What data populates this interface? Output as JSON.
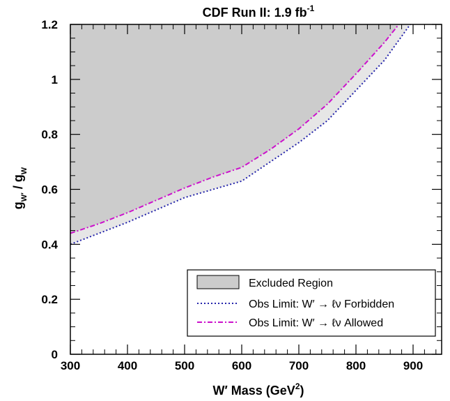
{
  "chart_data": {
    "type": "line",
    "title": "CDF Run II: 1.9 fb",
    "title_sup": "-1",
    "xlabel": "W′ Mass (GeV",
    "xlabel_sup": "2",
    "xlabel_tail": ")",
    "ylabel_main": "g",
    "ylabel_sub1": "W′",
    "ylabel_mid": " / g",
    "ylabel_sub2": "W",
    "xlim": [
      300,
      950
    ],
    "ylim": [
      0,
      1.2
    ],
    "x_ticks": [
      300,
      400,
      500,
      600,
      700,
      800,
      900
    ],
    "x_tick_labels": [
      "300",
      "400",
      "500",
      "600",
      "700",
      "800",
      "900"
    ],
    "y_ticks": [
      0,
      0.2,
      0.4,
      0.6,
      0.8,
      1,
      1.2
    ],
    "y_tick_labels": [
      "0",
      "0.2",
      "0.4",
      "0.6",
      "0.8",
      "1",
      "1.2"
    ],
    "grid": false,
    "legend_position": "bottom-right",
    "series": [
      {
        "name": "Obs Limit: W′ → ℓν Forbidden",
        "color": "#2222aa",
        "style": "dotted",
        "x": [
          300,
          350,
          400,
          450,
          500,
          550,
          600,
          650,
          700,
          750,
          800,
          850,
          895
        ],
        "y": [
          0.4,
          0.44,
          0.48,
          0.525,
          0.57,
          0.6,
          0.63,
          0.7,
          0.77,
          0.85,
          0.96,
          1.07,
          1.2
        ]
      },
      {
        "name": "Obs Limit: W′ → ℓν Allowed",
        "color": "#cc11cc",
        "style": "dash-dot",
        "x": [
          300,
          350,
          400,
          450,
          500,
          550,
          600,
          650,
          700,
          750,
          800,
          850,
          875
        ],
        "y": [
          0.44,
          0.475,
          0.515,
          0.56,
          0.605,
          0.645,
          0.68,
          0.745,
          0.82,
          0.91,
          1.02,
          1.135,
          1.2
        ]
      }
    ],
    "excluded_region_label": "Excluded Region",
    "excluded_fill": "#cccccc",
    "band_fill": "#e6e6e6"
  }
}
